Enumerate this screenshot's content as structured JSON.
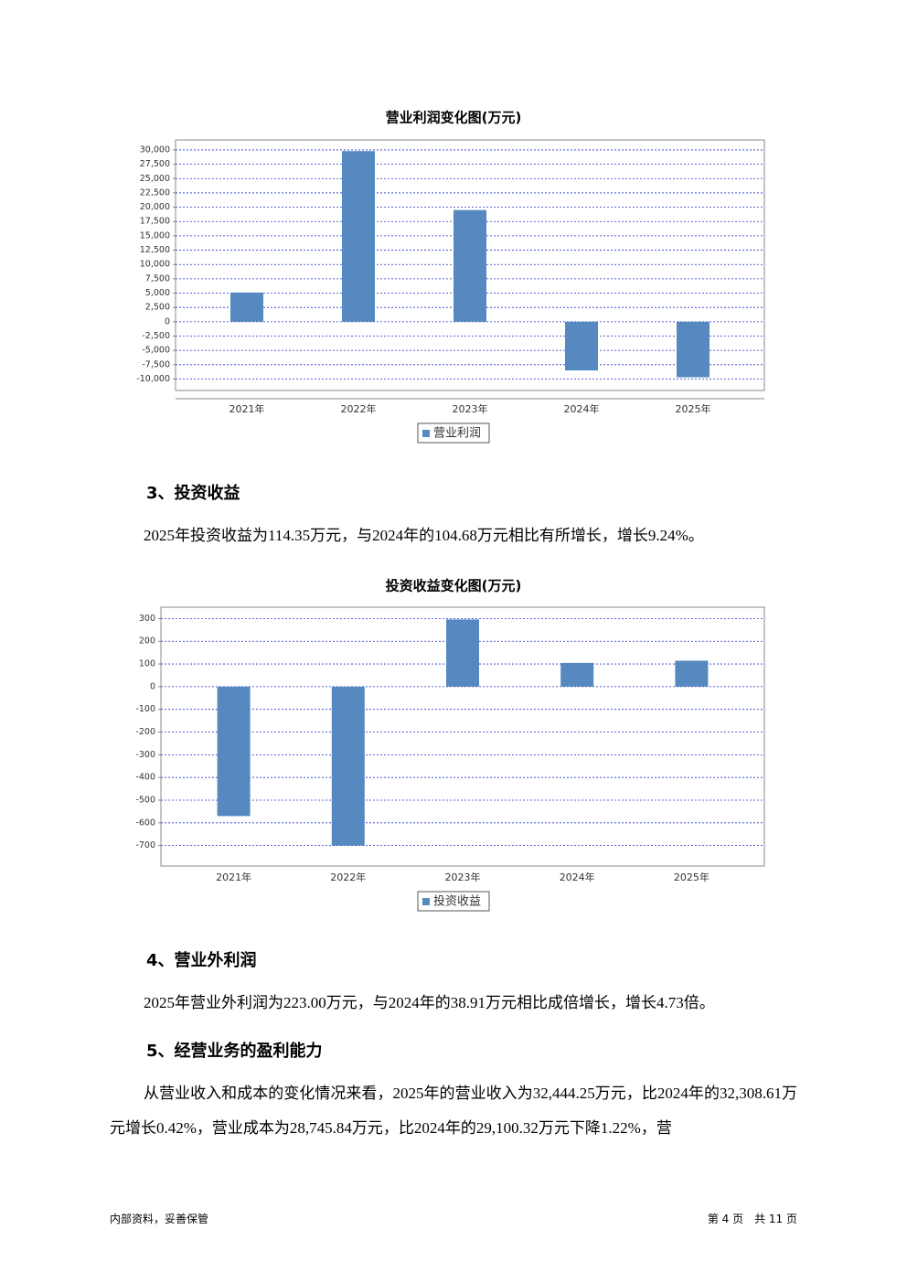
{
  "chart_data": [
    {
      "type": "bar",
      "title": "营业利润变化图(万元)",
      "categories": [
        "2021年",
        "2022年",
        "2023年",
        "2024年",
        "2025年"
      ],
      "series": [
        {
          "name": "营业利润",
          "color": "#5589bf",
          "values": [
            5100,
            29800,
            19500,
            -8500,
            -9700
          ]
        }
      ],
      "ylim": [
        -12000,
        31750
      ],
      "yticks": [
        {
          "value": 30000,
          "label": "30,000"
        },
        {
          "value": 27500,
          "label": "27,500"
        },
        {
          "value": 25000,
          "label": "25,000"
        },
        {
          "value": 22500,
          "label": "22,500"
        },
        {
          "value": 20000,
          "label": "20,000"
        },
        {
          "value": 17500,
          "label": "17,500"
        },
        {
          "value": 15000,
          "label": "15,000"
        },
        {
          "value": 12500,
          "label": "12,500"
        },
        {
          "value": 10000,
          "label": "10,000"
        },
        {
          "value": 7500,
          "label": "7,500"
        },
        {
          "value": 5000,
          "label": "5,000"
        },
        {
          "value": 2500,
          "label": "2,500"
        },
        0,
        {
          "value": -2500,
          "label": "-2,500"
        },
        {
          "value": -5000,
          "label": "-5,000"
        },
        {
          "value": -7500,
          "label": "-7,500"
        },
        {
          "value": -10000,
          "label": "-10,000"
        }
      ],
      "grid": true
    },
    {
      "type": "bar",
      "title": "投资收益变化图(万元)",
      "categories": [
        "2021年",
        "2022年",
        "2023年",
        "2024年",
        "2025年"
      ],
      "series": [
        {
          "name": "投资收益",
          "color": "#5589bf",
          "values": [
            -570,
            -700,
            296,
            104.68,
            114.35
          ]
        }
      ],
      "ylim": [
        -790,
        350
      ],
      "yticks": [
        300,
        200,
        100,
        0,
        -100,
        -200,
        -300,
        -400,
        -500,
        -600,
        -700
      ],
      "grid": true
    }
  ],
  "sections": [
    {
      "heading": "3、投资收益",
      "text": "2025年投资收益为114.35万元，与2024年的104.68万元相比有所增长，增长9.24%。"
    },
    {
      "heading": "4、营业外利润",
      "text": "2025年营业外利润为223.00万元，与2024年的38.91万元相比成倍增长，增长4.73倍。"
    },
    {
      "heading": "5、经营业务的盈利能力",
      "text": "从营业收入和成本的变化情况来看，2025年的营业收入为32,444.25万元，比2024年的32,308.61万元增长0.42%，营业成本为28,745.84万元，比2024年的29,100.32万元下降1.22%，营"
    }
  ],
  "footer": {
    "left": "内部资料，妥善保管",
    "right": "第 4 页　共 11 页"
  }
}
